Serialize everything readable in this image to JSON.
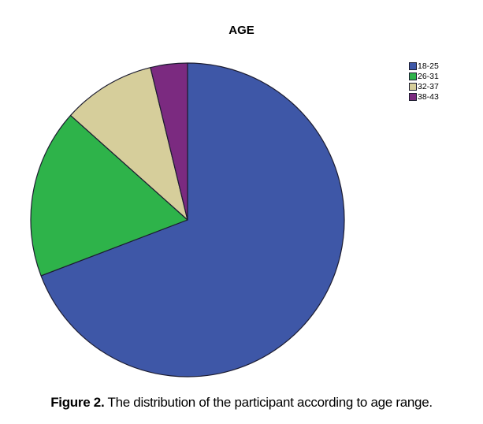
{
  "chart_data": {
    "type": "pie",
    "title": "AGE",
    "categories": [
      "18-25",
      "26-31",
      "32-37",
      "38-43"
    ],
    "values": [
      69.2,
      17.4,
      9.6,
      3.8
    ],
    "unit": "percent",
    "colors": [
      "#3E57A7",
      "#2EB34A",
      "#D6CE9B",
      "#7B2A80"
    ],
    "slice_border_color": "#1C1C30",
    "start_angle_deg": 0,
    "direction": "clockwise",
    "legend_position": "right",
    "legend_labels": [
      "18-25",
      "26-31",
      "32-37",
      "38-43"
    ]
  },
  "caption": {
    "prefix": "Figure 2.",
    "text": " The distribution of the participant according to age range."
  }
}
